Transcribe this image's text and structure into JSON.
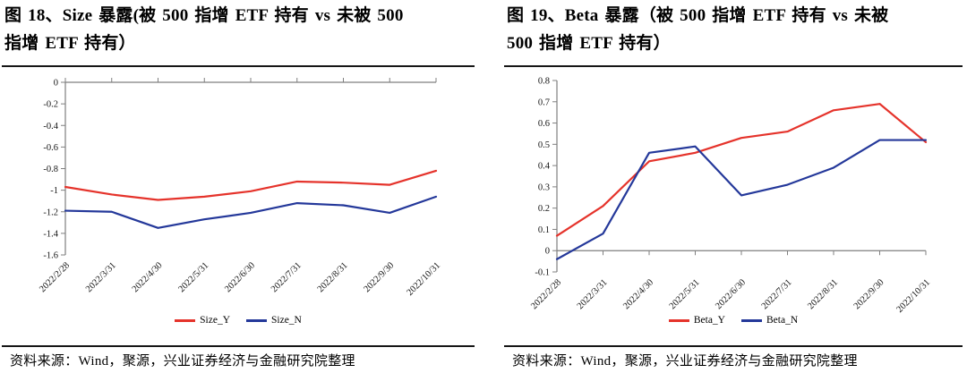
{
  "page": {
    "background": "#ffffff"
  },
  "colors": {
    "axis": "#7f7f7f",
    "rule": "#161616",
    "red": "#e5332b",
    "blue": "#24389a"
  },
  "figures": [
    {
      "title": "图 18、Size 暴露(被 500 指增 ETF 持有 vs 未被 500\n指增 ETF 持有）",
      "source": "资料来源：Wind，聚源，兴业证券经济与金融研究院整理",
      "chart_data": {
        "type": "line",
        "categories": [
          "2022/2/28",
          "2022/3/31",
          "2022/4/30",
          "2022/5/31",
          "2022/6/30",
          "2022/7/31",
          "2022/8/31",
          "2022/9/30",
          "2022/10/31"
        ],
        "series": [
          {
            "name": "Size_Y",
            "color": "#e5332b",
            "values": [
              -0.97,
              -1.04,
              -1.09,
              -1.06,
              -1.01,
              -0.92,
              -0.93,
              -0.95,
              -0.82
            ]
          },
          {
            "name": "Size_N",
            "color": "#24389a",
            "values": [
              -1.19,
              -1.2,
              -1.35,
              -1.27,
              -1.21,
              -1.12,
              -1.14,
              -1.21,
              -1.06
            ]
          }
        ],
        "xlabel": "",
        "ylabel": "",
        "ylim": [
          -1.6,
          0
        ],
        "yticks": [
          0,
          -0.2,
          -0.4,
          -0.6,
          -0.8,
          -1,
          -1.2,
          -1.4,
          -1.6
        ],
        "ytick_labels": [
          "0",
          "-0.2",
          "-0.4",
          "-0.6",
          "-0.8",
          "-1",
          "-1.2",
          "-1.4",
          "-1.6"
        ],
        "grid": false,
        "legend_position": "bottom",
        "x_tick_label_rotation": 45
      }
    },
    {
      "title": "图 19、Beta 暴露（被 500 指增 ETF 持有 vs 未被\n500 指增 ETF 持有）",
      "source": "资料来源：Wind，聚源，兴业证券经济与金融研究院整理",
      "chart_data": {
        "type": "line",
        "categories": [
          "2022/2/28",
          "2022/3/31",
          "2022/4/30",
          "2022/5/31",
          "2022/6/30",
          "2022/7/31",
          "2022/8/31",
          "2022/9/30",
          "2022/10/31"
        ],
        "series": [
          {
            "name": "Beta_Y",
            "color": "#e5332b",
            "values": [
              0.07,
              0.21,
              0.42,
              0.46,
              0.53,
              0.56,
              0.66,
              0.69,
              0.51
            ]
          },
          {
            "name": "Beta_N",
            "color": "#24389a",
            "values": [
              -0.04,
              0.08,
              0.46,
              0.49,
              0.26,
              0.31,
              0.39,
              0.52,
              0.52
            ]
          }
        ],
        "xlabel": "",
        "ylabel": "",
        "ylim": [
          -0.1,
          0.8
        ],
        "yticks": [
          0.8,
          0.7,
          0.6,
          0.5,
          0.4,
          0.3,
          0.2,
          0.1,
          0,
          -0.1
        ],
        "ytick_labels": [
          "0.8",
          "0.7",
          "0.6",
          "0.5",
          "0.4",
          "0.3",
          "0.2",
          "0.1",
          "0",
          "-0.1"
        ],
        "grid": false,
        "legend_position": "bottom",
        "x_tick_label_rotation": 45
      }
    }
  ]
}
